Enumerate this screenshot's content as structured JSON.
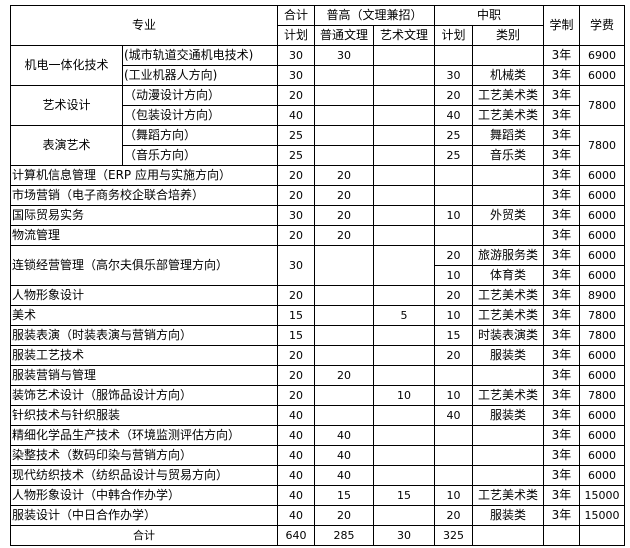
{
  "header": {
    "major": "专业",
    "total": "合计",
    "total_plan": "计划",
    "general_high": "普高（文理兼招）",
    "general_arts_science": "普通文理",
    "art_arts_science": "艺术文理",
    "vocational": "中职",
    "vocational_plan": "计划",
    "vocational_category": "类别",
    "duration": "学制",
    "fee": "学费"
  },
  "rows": [
    {
      "major": "机电一体化技术",
      "direction": "(城市轨道交通机电技术)",
      "total": "30",
      "general": "30",
      "art": "",
      "voc_plan": "",
      "voc_type": "",
      "years": "3年",
      "fee": "6900"
    },
    {
      "direction": "(工业机器人方向)",
      "total": "30",
      "general": "",
      "art": "",
      "voc_plan": "30",
      "voc_type": "机械类",
      "years": "3年",
      "fee": "6000"
    },
    {
      "major": "艺术设计",
      "direction": "（动漫设计方向）",
      "total": "20",
      "general": "",
      "art": "",
      "voc_plan": "20",
      "voc_type": "工艺美术类",
      "years": "3年",
      "fee": "7800"
    },
    {
      "direction": "（包装设计方向）",
      "total": "40",
      "general": "",
      "art": "",
      "voc_plan": "40",
      "voc_type": "工艺美术类",
      "years": "3年"
    },
    {
      "major": "表演艺术",
      "direction": "（舞蹈方向）",
      "total": "25",
      "general": "",
      "art": "",
      "voc_plan": "25",
      "voc_type": "舞蹈类",
      "years": "3年",
      "fee": "7800"
    },
    {
      "direction": "（音乐方向）",
      "total": "25",
      "general": "",
      "art": "",
      "voc_plan": "25",
      "voc_type": "音乐类",
      "years": "3年"
    },
    {
      "major": "计算机信息管理（ERP 应用与实施方向）",
      "total": "20",
      "general": "20",
      "art": "",
      "voc_plan": "",
      "voc_type": "",
      "years": "3年",
      "fee": "6000"
    },
    {
      "major": "市场营销（电子商务校企联合培养）",
      "total": "20",
      "general": "20",
      "art": "",
      "voc_plan": "",
      "voc_type": "",
      "years": "3年",
      "fee": "6000"
    },
    {
      "major": "国际贸易实务",
      "total": "30",
      "general": "20",
      "art": "",
      "voc_plan": "10",
      "voc_type": "外贸类",
      "years": "3年",
      "fee": "6000"
    },
    {
      "major": "物流管理",
      "total": "20",
      "general": "20",
      "art": "",
      "voc_plan": "",
      "voc_type": "",
      "years": "3年",
      "fee": "6000"
    },
    {
      "major": "连锁经营管理（高尔夫俱乐部管理方向）",
      "total": "30",
      "general": "",
      "art": "",
      "voc_plan": "20",
      "voc_type": "旅游服务类",
      "years": "3年",
      "fee": "6000"
    },
    {
      "voc_plan": "10",
      "voc_type": "体育类",
      "years": "3年",
      "fee": "6000"
    },
    {
      "major": "人物形象设计",
      "total": "20",
      "general": "",
      "art": "",
      "voc_plan": "20",
      "voc_type": "工艺美术类",
      "years": "3年",
      "fee": "8900"
    },
    {
      "major": "美术",
      "total": "15",
      "general": "",
      "art": "5",
      "voc_plan": "10",
      "voc_type": "工艺美术类",
      "years": "3年",
      "fee": "7800"
    },
    {
      "major": "服装表演（时装表演与营销方向）",
      "total": "15",
      "general": "",
      "art": "",
      "voc_plan": "15",
      "voc_type": "时装表演类",
      "years": "3年",
      "fee": "7800"
    },
    {
      "major": "服装工艺技术",
      "total": "20",
      "general": "",
      "art": "",
      "voc_plan": "20",
      "voc_type": "服装类",
      "years": "3年",
      "fee": "6000"
    },
    {
      "major": "服装营销与管理",
      "total": "20",
      "general": "20",
      "art": "",
      "voc_plan": "",
      "voc_type": "",
      "years": "3年",
      "fee": "6000"
    },
    {
      "major": "装饰艺术设计（服饰品设计方向）",
      "total": "20",
      "general": "",
      "art": "10",
      "voc_plan": "10",
      "voc_type": "工艺美术类",
      "years": "3年",
      "fee": "7800"
    },
    {
      "major": "针织技术与针织服装",
      "total": "40",
      "general": "",
      "art": "",
      "voc_plan": "40",
      "voc_type": "服装类",
      "years": "3年",
      "fee": "6000"
    },
    {
      "major": "精细化学品生产技术（环境监测评估方向）",
      "total": "40",
      "general": "40",
      "art": "",
      "voc_plan": "",
      "voc_type": "",
      "years": "3年",
      "fee": "6000"
    },
    {
      "major": "染整技术（数码印染与营销方向）",
      "total": "40",
      "general": "40",
      "art": "",
      "voc_plan": "",
      "voc_type": "",
      "years": "3年",
      "fee": "6000"
    },
    {
      "major": "现代纺织技术（纺织品设计与贸易方向）",
      "total": "40",
      "general": "40",
      "art": "",
      "voc_plan": "",
      "voc_type": "",
      "years": "3年",
      "fee": "6000"
    },
    {
      "major": "人物形象设计（中韩合作办学）",
      "total": "40",
      "general": "15",
      "art": "15",
      "voc_plan": "10",
      "voc_type": "工艺美术类",
      "years": "3年",
      "fee": "15000"
    },
    {
      "major": "服装设计（中日合作办学）",
      "total": "40",
      "general": "20",
      "art": "",
      "voc_plan": "20",
      "voc_type": "服装类",
      "years": "3年",
      "fee": "15000"
    }
  ],
  "summary": {
    "label": "合计",
    "total": "640",
    "general": "285",
    "art": "30",
    "voc_plan": "325",
    "voc_type": "",
    "years": "",
    "fee": ""
  }
}
